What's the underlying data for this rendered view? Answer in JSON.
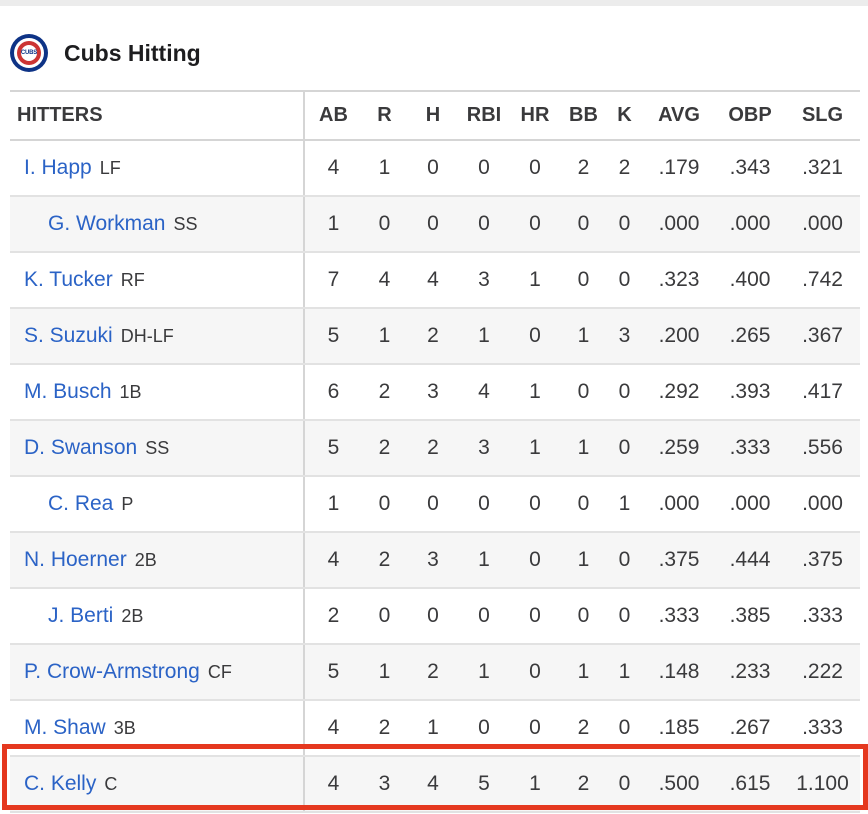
{
  "team": {
    "logo_text": "CUBS",
    "title": "Cubs Hitting"
  },
  "columns": [
    "HITTERS",
    "AB",
    "R",
    "H",
    "RBI",
    "HR",
    "BB",
    "K",
    "AVG",
    "OBP",
    "SLG"
  ],
  "rows": [
    {
      "name": "I. Happ",
      "pos": "LF",
      "sub": false,
      "stats": [
        "4",
        "1",
        "0",
        "0",
        "0",
        "2",
        "2",
        ".179",
        ".343",
        ".321"
      ]
    },
    {
      "name": "G. Workman",
      "pos": "SS",
      "sub": true,
      "stats": [
        "1",
        "0",
        "0",
        "0",
        "0",
        "0",
        "0",
        ".000",
        ".000",
        ".000"
      ]
    },
    {
      "name": "K. Tucker",
      "pos": "RF",
      "sub": false,
      "stats": [
        "7",
        "4",
        "4",
        "3",
        "1",
        "0",
        "0",
        ".323",
        ".400",
        ".742"
      ]
    },
    {
      "name": "S. Suzuki",
      "pos": "DH-LF",
      "sub": false,
      "stats": [
        "5",
        "1",
        "2",
        "1",
        "0",
        "1",
        "3",
        ".200",
        ".265",
        ".367"
      ]
    },
    {
      "name": "M. Busch",
      "pos": "1B",
      "sub": false,
      "stats": [
        "6",
        "2",
        "3",
        "4",
        "1",
        "0",
        "0",
        ".292",
        ".393",
        ".417"
      ]
    },
    {
      "name": "D. Swanson",
      "pos": "SS",
      "sub": false,
      "stats": [
        "5",
        "2",
        "2",
        "3",
        "1",
        "1",
        "0",
        ".259",
        ".333",
        ".556"
      ]
    },
    {
      "name": "C. Rea",
      "pos": "P",
      "sub": true,
      "stats": [
        "1",
        "0",
        "0",
        "0",
        "0",
        "0",
        "1",
        ".000",
        ".000",
        ".000"
      ]
    },
    {
      "name": "N. Hoerner",
      "pos": "2B",
      "sub": false,
      "stats": [
        "4",
        "2",
        "3",
        "1",
        "0",
        "1",
        "0",
        ".375",
        ".444",
        ".375"
      ]
    },
    {
      "name": "J. Berti",
      "pos": "2B",
      "sub": true,
      "stats": [
        "2",
        "0",
        "0",
        "0",
        "0",
        "0",
        "0",
        ".333",
        ".385",
        ".333"
      ]
    },
    {
      "name": "P. Crow-Armstrong",
      "pos": "CF",
      "sub": false,
      "stats": [
        "5",
        "1",
        "2",
        "1",
        "0",
        "1",
        "1",
        ".148",
        ".233",
        ".222"
      ]
    },
    {
      "name": "M. Shaw",
      "pos": "3B",
      "sub": false,
      "stats": [
        "4",
        "2",
        "1",
        "0",
        "0",
        "2",
        "0",
        ".185",
        ".267",
        ".333"
      ]
    },
    {
      "name": "C. Kelly",
      "pos": "C",
      "sub": false,
      "highlighted": true,
      "stats": [
        "4",
        "3",
        "4",
        "5",
        "1",
        "2",
        "0",
        ".500",
        ".615",
        "1.100"
      ]
    }
  ],
  "colors": {
    "link": "#2b63c6",
    "highlight": "#e5381f",
    "logo_blue": "#0e3386",
    "logo_red": "#cc3433"
  }
}
